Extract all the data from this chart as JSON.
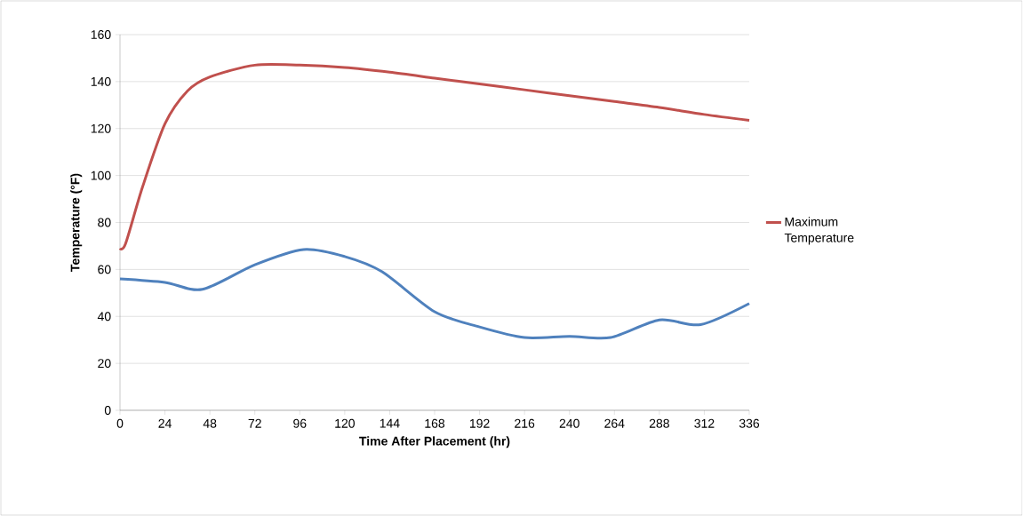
{
  "chart_data": {
    "type": "line",
    "xlabel": "Time After Placement (hr)",
    "ylabel": "Temperature (°F)",
    "xlim": [
      0,
      336
    ],
    "ylim": [
      0,
      160
    ],
    "xticks": [
      0,
      24,
      48,
      72,
      96,
      120,
      144,
      168,
      192,
      216,
      240,
      264,
      288,
      312,
      336
    ],
    "yticks": [
      0,
      20,
      40,
      60,
      80,
      100,
      120,
      140,
      160
    ],
    "grid": "y",
    "legend": "right",
    "line_style": "solid",
    "series": [
      {
        "name": "Maximum Temperature",
        "color": "#c0504d",
        "x": [
          0,
          3,
          12,
          24,
          36,
          48,
          72,
          96,
          120,
          144,
          168,
          192,
          216,
          240,
          264,
          288,
          312,
          336
        ],
        "values": [
          69,
          71,
          95,
          122,
          136,
          142,
          147,
          147,
          146,
          144,
          141.5,
          139,
          136.5,
          134,
          131.5,
          129,
          126,
          123.5
        ]
      },
      {
        "color": "#4f81bd",
        "x": [
          0,
          24,
          44,
          72,
          98,
          120,
          140,
          168,
          192,
          216,
          240,
          262,
          288,
          310,
          336
        ],
        "values": [
          56,
          54.5,
          51.5,
          62,
          68.5,
          65.5,
          59,
          42,
          35.5,
          31,
          31.5,
          31,
          38.5,
          36.5,
          45.5
        ]
      }
    ]
  }
}
